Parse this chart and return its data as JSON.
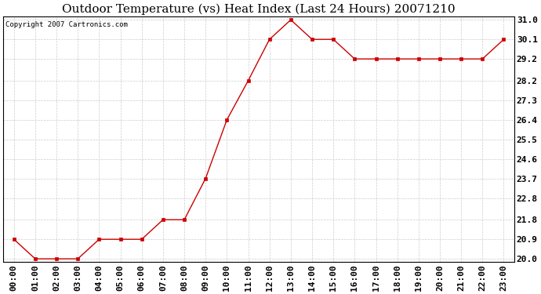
{
  "title": "Outdoor Temperature (vs) Heat Index (Last 24 Hours) 20071210",
  "copyright": "Copyright 2007 Cartronics.com",
  "x_labels": [
    "00:00",
    "01:00",
    "02:00",
    "03:00",
    "04:00",
    "05:00",
    "06:00",
    "07:00",
    "08:00",
    "09:00",
    "10:00",
    "11:00",
    "12:00",
    "13:00",
    "14:00",
    "15:00",
    "16:00",
    "17:00",
    "18:00",
    "19:00",
    "20:00",
    "21:00",
    "22:00",
    "23:00"
  ],
  "y_values": [
    20.9,
    20.0,
    20.0,
    20.0,
    20.9,
    20.9,
    20.9,
    21.8,
    21.8,
    23.7,
    26.4,
    28.2,
    30.1,
    31.0,
    30.1,
    30.1,
    29.2,
    29.2,
    29.2,
    29.2,
    29.2,
    29.2,
    29.2,
    30.1
  ],
  "y_ticks": [
    20.0,
    20.9,
    21.8,
    22.8,
    23.7,
    24.6,
    25.5,
    26.4,
    27.3,
    28.2,
    29.2,
    30.1,
    31.0
  ],
  "y_min": 19.85,
  "y_max": 31.15,
  "line_color": "#cc0000",
  "marker": "s",
  "marker_size": 2.5,
  "background_color": "#ffffff",
  "plot_bg_color": "#ffffff",
  "grid_color": "#cccccc",
  "title_fontsize": 11,
  "tick_fontsize": 8,
  "copyright_fontsize": 6.5
}
